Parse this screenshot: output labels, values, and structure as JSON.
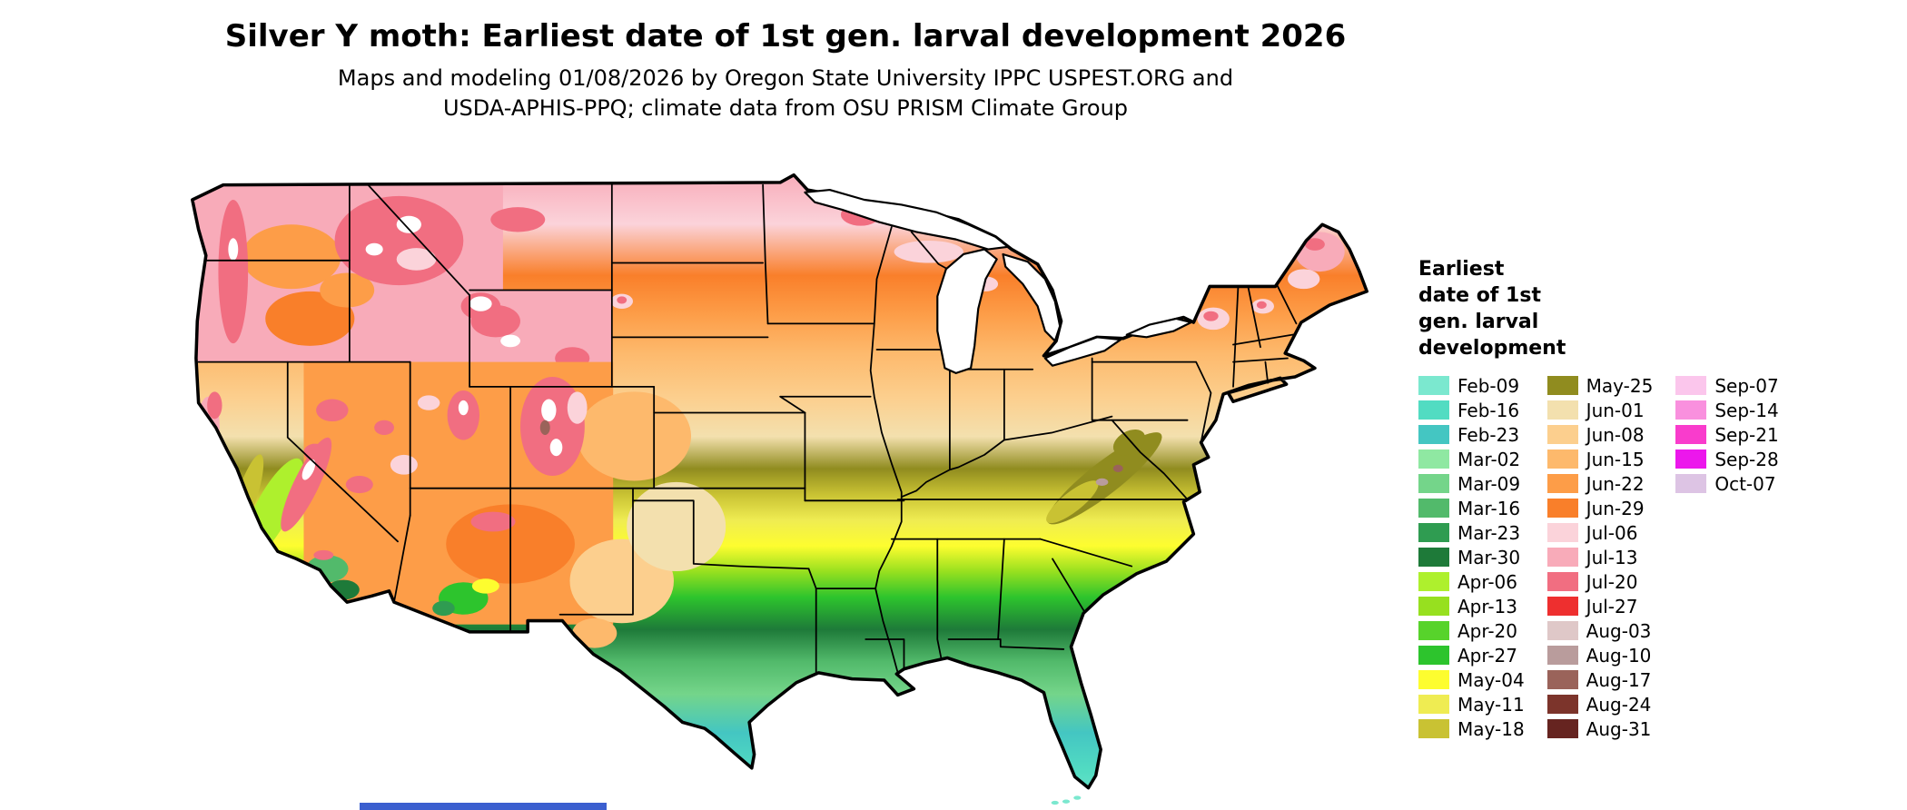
{
  "header": {
    "title": "Silver Y moth: Earliest date of 1st gen. larval development 2026",
    "subtitle_line1": "Maps and modeling 01/08/2026 by Oregon State University IPPC USPEST.ORG and",
    "subtitle_line2": "USDA-APHIS-PPQ; climate data from OSU PRISM Climate Group"
  },
  "legend": {
    "title": "Earliest\ndate of 1st\ngen. larval\ndevelopment",
    "columns": [
      [
        {
          "label": "Feb-09",
          "color": "#7be8cf"
        },
        {
          "label": "Feb-16",
          "color": "#52dcc2"
        },
        {
          "label": "Feb-23",
          "color": "#44c6c2"
        },
        {
          "label": "Mar-02",
          "color": "#8fe8a2"
        },
        {
          "label": "Mar-09",
          "color": "#74d58a"
        },
        {
          "label": "Mar-16",
          "color": "#52ba6b"
        },
        {
          "label": "Mar-23",
          "color": "#2f9c51"
        },
        {
          "label": "Mar-30",
          "color": "#1e7a39"
        },
        {
          "label": "Apr-06",
          "color": "#aef02d"
        },
        {
          "label": "Apr-13",
          "color": "#97e01f"
        },
        {
          "label": "Apr-20",
          "color": "#57d32b"
        },
        {
          "label": "Apr-27",
          "color": "#2dc42d"
        },
        {
          "label": "May-04",
          "color": "#fdfd2f"
        },
        {
          "label": "May-11",
          "color": "#efec52"
        },
        {
          "label": "May-18",
          "color": "#c9c233"
        }
      ],
      [
        {
          "label": "May-25",
          "color": "#908c1f"
        },
        {
          "label": "Jun-01",
          "color": "#f3e0ae"
        },
        {
          "label": "Jun-08",
          "color": "#fccf8e"
        },
        {
          "label": "Jun-15",
          "color": "#fdb96c"
        },
        {
          "label": "Jun-22",
          "color": "#fd9d48"
        },
        {
          "label": "Jun-29",
          "color": "#f97f2a"
        },
        {
          "label": "Jul-06",
          "color": "#fbd3da"
        },
        {
          "label": "Jul-13",
          "color": "#f8abb9"
        },
        {
          "label": "Jul-20",
          "color": "#f16e81"
        },
        {
          "label": "Jul-27",
          "color": "#ee2f2f"
        },
        {
          "label": "Aug-03",
          "color": "#dfc8c8"
        },
        {
          "label": "Aug-10",
          "color": "#b99c9c"
        },
        {
          "label": "Aug-17",
          "color": "#9a635a"
        },
        {
          "label": "Aug-24",
          "color": "#7c342b"
        },
        {
          "label": "Aug-31",
          "color": "#662420"
        }
      ],
      [
        {
          "label": "Sep-07",
          "color": "#fbc6ec"
        },
        {
          "label": "Sep-14",
          "color": "#f990de"
        },
        {
          "label": "Sep-21",
          "color": "#f93ccc"
        },
        {
          "label": "Sep-28",
          "color": "#ec17ec"
        },
        {
          "label": "Oct-07",
          "color": "#ddc4e4"
        }
      ]
    ]
  },
  "artifacts": {
    "bottom_blue_bar_color": "#3b5fcf"
  },
  "chart_data": {
    "type": "heatmap",
    "title": "Silver Y moth: Earliest date of 1st gen. larval development 2026",
    "region": "Continental United States raster map with state boundaries",
    "legend_title": "Earliest date of 1st gen. larval development",
    "classes": [
      "Feb-09",
      "Feb-16",
      "Feb-23",
      "Mar-02",
      "Mar-09",
      "Mar-16",
      "Mar-23",
      "Mar-30",
      "Apr-06",
      "Apr-13",
      "Apr-20",
      "Apr-27",
      "May-04",
      "May-11",
      "May-18",
      "May-25",
      "Jun-01",
      "Jun-08",
      "Jun-15",
      "Jun-22",
      "Jun-29",
      "Jul-06",
      "Jul-13",
      "Jul-20",
      "Jul-27",
      "Aug-03",
      "Aug-10",
      "Aug-17",
      "Aug-24",
      "Aug-31",
      "Sep-07",
      "Sep-14",
      "Sep-21",
      "Sep-28",
      "Oct-07"
    ],
    "pattern": "Earliest dates (Feb-Mar, teal/green) in south Florida, the Gulf Coast and south Texas; Apr-May greens and yellows across the South; Jun tans and oranges across the Midwest, Mid-Atlantic and interior Southwest; Jul pinks and reds across the northern Plains, upper Great Lakes, northern New England and the mountain West; white no-data patches over the high Rockies, Cascades and Sierra Nevada."
  }
}
